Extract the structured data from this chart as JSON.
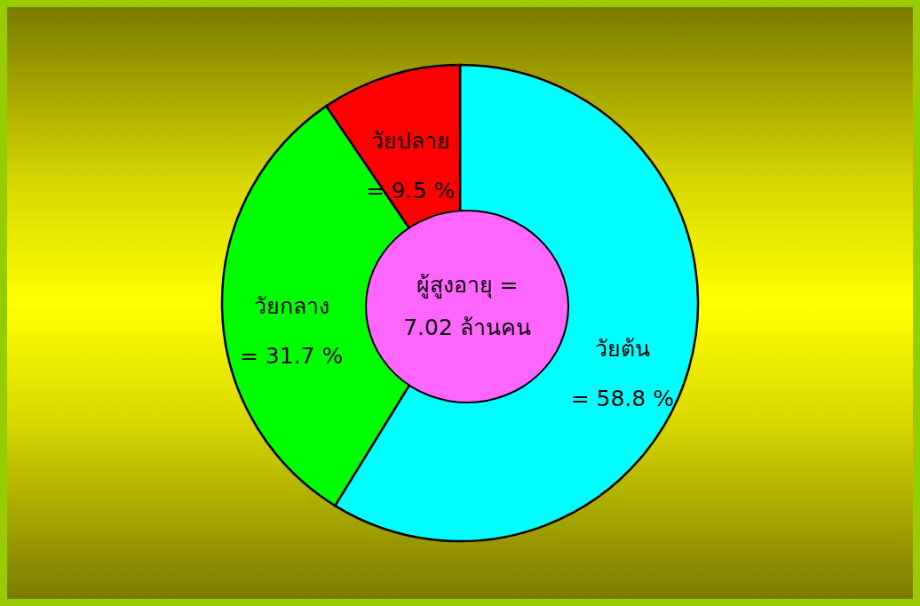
{
  "chart_data": {
    "type": "pie",
    "categories": [
      "วัยต้น",
      "วัยกลาง",
      "วัยปลาย"
    ],
    "values": [
      58.8,
      31.7,
      9.5
    ],
    "value_labels": [
      "= 58.8 %",
      "= 31.7 %",
      "= 9.5 %"
    ],
    "colors": [
      "#00ffff",
      "#00ff00",
      "#ff0000"
    ],
    "annotations": [
      "ผู้สูงอายุ =",
      "7.02 ล้านคน"
    ]
  }
}
